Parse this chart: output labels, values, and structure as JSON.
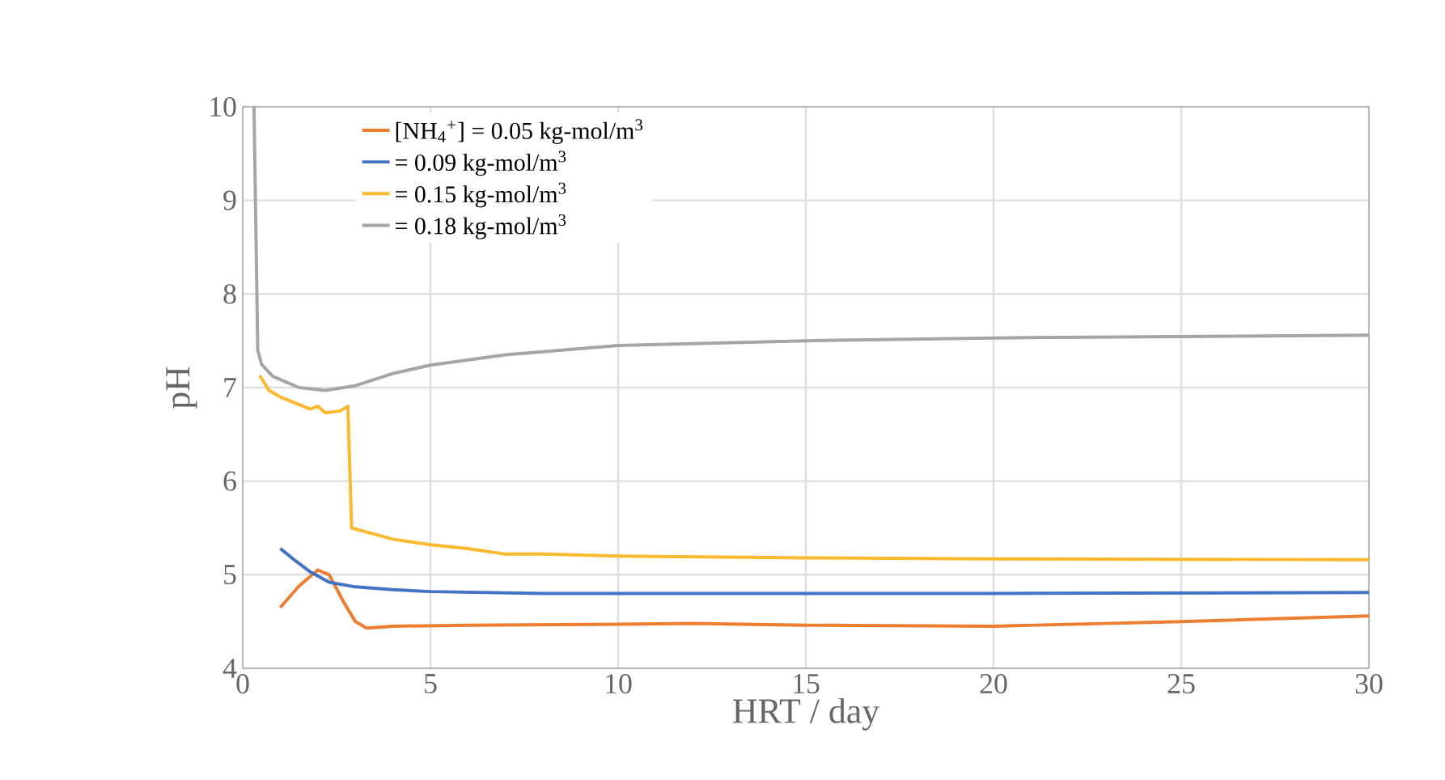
{
  "chart_data": {
    "type": "line",
    "xlabel": "HRT / day",
    "ylabel": "pH",
    "xlim": [
      0,
      30
    ],
    "ylim": [
      4,
      10
    ],
    "xticks": [
      0,
      5,
      10,
      15,
      20,
      25,
      30
    ],
    "yticks": [
      4,
      5,
      6,
      7,
      8,
      9,
      10
    ],
    "grid": true,
    "legend": "top left",
    "marker": "none",
    "line_style": "solid",
    "series": [
      {
        "name": "[NH$_{4}$$^{+}$] = 0.05 kg-mol/m$^{3}$",
        "color": "#ed7d31",
        "x": [
          1,
          1.5,
          2,
          2.3,
          2.7,
          3.0,
          3.3,
          4,
          6,
          10,
          12,
          15,
          20,
          25,
          30
        ],
        "values": [
          4.65,
          4.88,
          5.05,
          5.0,
          4.7,
          4.5,
          4.43,
          4.45,
          4.46,
          4.47,
          4.48,
          4.46,
          4.45,
          4.5,
          4.56
        ]
      },
      {
        "name": "= 0.09 kg-mol/m$^{3}$",
        "color": "#4472c4",
        "x": [
          1,
          1.4,
          1.8,
          2.3,
          3,
          4,
          5,
          8,
          15,
          20,
          30
        ],
        "values": [
          5.28,
          5.15,
          5.03,
          4.92,
          4.87,
          4.84,
          4.82,
          4.8,
          4.8,
          4.8,
          4.81
        ]
      },
      {
        "name": "= 0.15 kg-mol/m$^{3}$",
        "color": "#fbb92f",
        "x": [
          0.45,
          0.7,
          1,
          1.8,
          2.0,
          2.2,
          2.6,
          2.8,
          2.9,
          4,
          5,
          6,
          7,
          8,
          10,
          15,
          20,
          30
        ],
        "values": [
          7.13,
          6.97,
          6.9,
          6.77,
          6.8,
          6.73,
          6.75,
          6.8,
          5.5,
          5.38,
          5.32,
          5.28,
          5.22,
          5.22,
          5.2,
          5.18,
          5.17,
          5.16
        ]
      },
      {
        "name": "= 0.18 kg-mol/m$^{3}$",
        "color": "#a5a5a5",
        "x": [
          0.3,
          0.4,
          0.5,
          0.8,
          1.5,
          2.2,
          3,
          4,
          5,
          7,
          10,
          15,
          20,
          30
        ],
        "values": [
          10,
          7.4,
          7.25,
          7.12,
          7.0,
          6.97,
          7.02,
          7.15,
          7.24,
          7.35,
          7.45,
          7.5,
          7.53,
          7.56
        ]
      }
    ]
  }
}
